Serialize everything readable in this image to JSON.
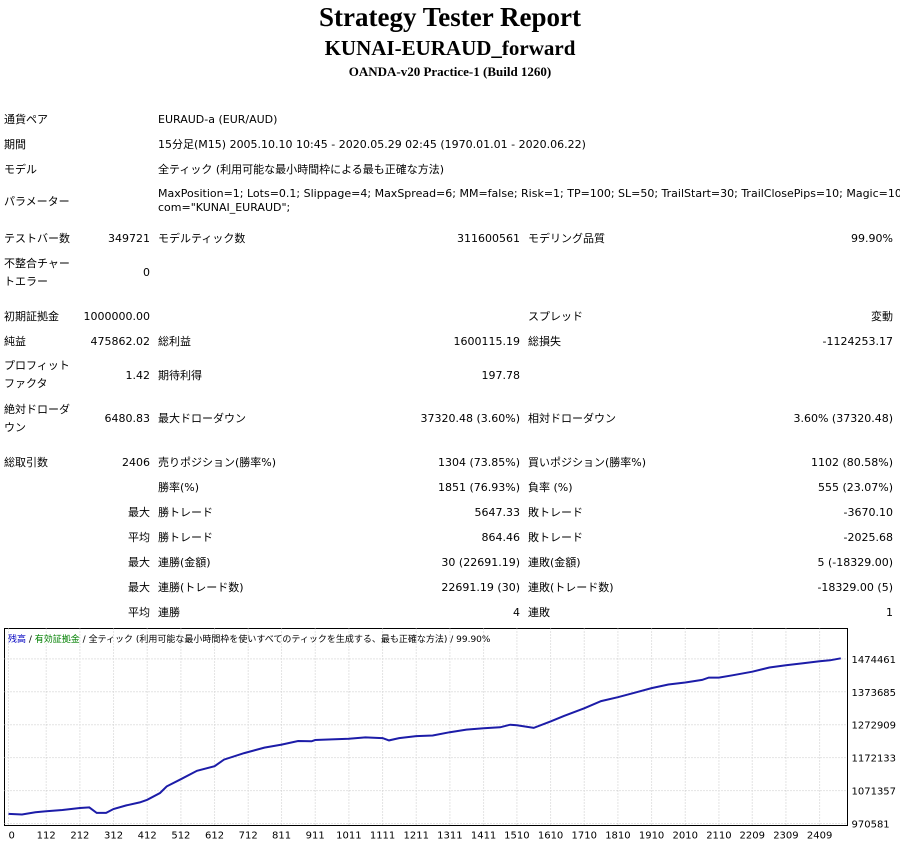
{
  "header": {
    "title": "Strategy Tester Report",
    "ea_name": "KUNAI-EURAUD_forward",
    "server": "OANDA-v20 Practice-1 (Build 1260)"
  },
  "settings": {
    "symbol_label": "通貨ペア",
    "symbol_value": "EURAUD-a (EUR/AUD)",
    "period_label": "期間",
    "period_value": "15分足(M15) 2005.10.10 10:45 - 2020.05.29 02:45 (1970.01.01 - 2020.06.22)",
    "model_label": "モデル",
    "model_value": "全ティック (利用可能な最小時間枠による最も正確な方法)",
    "params_label": "パラメーター",
    "params_line1": "MaxPosition=1; Lots=0.1; Slippage=4; MaxSpread=6; MM=false; Risk=1; TP=100; SL=50; TrailStart=30; TrailClosePips=10; Magic=1014;",
    "params_line2": "com=\"KUNAI_EURAUD\";"
  },
  "stats": {
    "bars_label": "テストバー数",
    "bars_value": "349721",
    "ticks_label": "モデルティック数",
    "ticks_value": "311600561",
    "quality_label": "モデリング品質",
    "quality_value": "99.90%",
    "mismatch_label_1": "不整合チャー",
    "mismatch_label_2": "トエラー",
    "mismatch_value": "0",
    "deposit_label": "初期証拠金",
    "deposit_value": "1000000.00",
    "spread_label": "スプレッド",
    "spread_value": "変動",
    "net_label": "純益",
    "net_value": "475862.02",
    "gross_profit_label": "総利益",
    "gross_profit_value": "1600115.19",
    "gross_loss_label": "総損失",
    "gross_loss_value": "-1124253.17",
    "pf_label_1": "プロフィット",
    "pf_label_2": "ファクタ",
    "pf_value": "1.42",
    "expected_label": "期待利得",
    "expected_value": "197.78",
    "abs_dd_label_1": "絶対ドローダ",
    "abs_dd_label_2": "ウン",
    "abs_dd_value": "6480.83",
    "max_dd_label": "最大ドローダウン",
    "max_dd_value": "37320.48 (3.60%)",
    "rel_dd_label": "相対ドローダウン",
    "rel_dd_value": "3.60% (37320.48)",
    "trades_label": "総取引数",
    "trades_value": "2406",
    "short_label": "売りポジション(勝率%)",
    "short_value": "1304 (73.85%)",
    "long_label": "買いポジション(勝率%)",
    "long_value": "1102 (80.58%)",
    "win_rate_label": "勝率(%)",
    "win_rate_value": "1851 (76.93%)",
    "loss_rate_label": "負率 (%)",
    "loss_rate_value": "555 (23.07%)",
    "max_label": "最大",
    "avg_label": "平均",
    "largest_win_label": "勝トレード",
    "largest_win_value": "5647.33",
    "largest_loss_label": "敗トレード",
    "largest_loss_value": "-3670.10",
    "avg_win_label": "勝トレード",
    "avg_win_value": "864.46",
    "avg_loss_label": "敗トレード",
    "avg_loss_value": "-2025.68",
    "cons_wins_money_label": "連勝(金額)",
    "cons_wins_money_value": "30 (22691.19)",
    "cons_losses_money_label": "連敗(金額)",
    "cons_losses_money_value": "5 (-18329.00)",
    "cons_profit_label": "連勝(トレード数)",
    "cons_profit_value": "22691.19 (30)",
    "cons_loss_label": "連敗(トレード数)",
    "cons_loss_value": "-18329.00 (5)",
    "avg_cons_wins_label": "連勝",
    "avg_cons_wins_value": "4",
    "avg_cons_losses_label": "連敗",
    "avg_cons_losses_value": "1"
  },
  "chart_data": {
    "type": "line",
    "legend": {
      "balance": "残高",
      "sep1": " / ",
      "equity": "有効証拠金",
      "sep2": " / ",
      "model": "全ティック (利用可能な最小時間枠を使いすべてのティックを生成する、最も正確な方法) / 99.90%"
    },
    "x_ticks": [
      0,
      112,
      212,
      312,
      412,
      512,
      612,
      712,
      811,
      911,
      1011,
      1111,
      1211,
      1311,
      1411,
      1510,
      1610,
      1710,
      1810,
      1910,
      2010,
      2110,
      2209,
      2309,
      2409
    ],
    "y_ticks": [
      1474461,
      1373685,
      1272909,
      1172133,
      1071357,
      970581
    ],
    "ylim": [
      970581,
      1500000
    ],
    "xlim": [
      0,
      2480
    ],
    "grid": true,
    "colors": {
      "balance": "#1c1ca8",
      "equity": "#008000",
      "grid": "#c8c8c8",
      "text_balance": "#0000c0"
    },
    "series": [
      {
        "name": "残高",
        "x": [
          0,
          40,
          80,
          112,
          160,
          212,
          240,
          262,
          290,
          312,
          350,
          390,
          412,
          450,
          470,
          512,
          560,
          612,
          640,
          700,
          760,
          811,
          860,
          900,
          911,
          960,
          1011,
          1060,
          1111,
          1130,
          1160,
          1211,
          1260,
          1311,
          1360,
          1411,
          1460,
          1490,
          1510,
          1560,
          1610,
          1650,
          1710,
          1760,
          1810,
          1860,
          1910,
          1960,
          2010,
          2060,
          2080,
          2110,
          2150,
          2209,
          2260,
          2309,
          2360,
          2409,
          2440,
          2472
        ],
        "y": [
          1000000,
          998000,
          1005000,
          1008000,
          1012000,
          1018000,
          1020000,
          1003000,
          1003000,
          1015000,
          1026000,
          1035000,
          1043000,
          1064000,
          1084000,
          1106000,
          1132000,
          1146000,
          1166000,
          1186000,
          1203000,
          1212000,
          1223000,
          1222000,
          1226000,
          1228000,
          1230000,
          1234000,
          1232000,
          1225000,
          1232000,
          1238000,
          1240000,
          1250000,
          1258000,
          1262000,
          1265000,
          1273000,
          1271000,
          1263000,
          1283000,
          1300000,
          1323000,
          1345000,
          1357000,
          1371000,
          1385000,
          1396000,
          1402000,
          1410000,
          1417000,
          1417000,
          1424000,
          1435000,
          1448000,
          1455000,
          1461000,
          1467000,
          1470000,
          1476000
        ]
      }
    ]
  }
}
